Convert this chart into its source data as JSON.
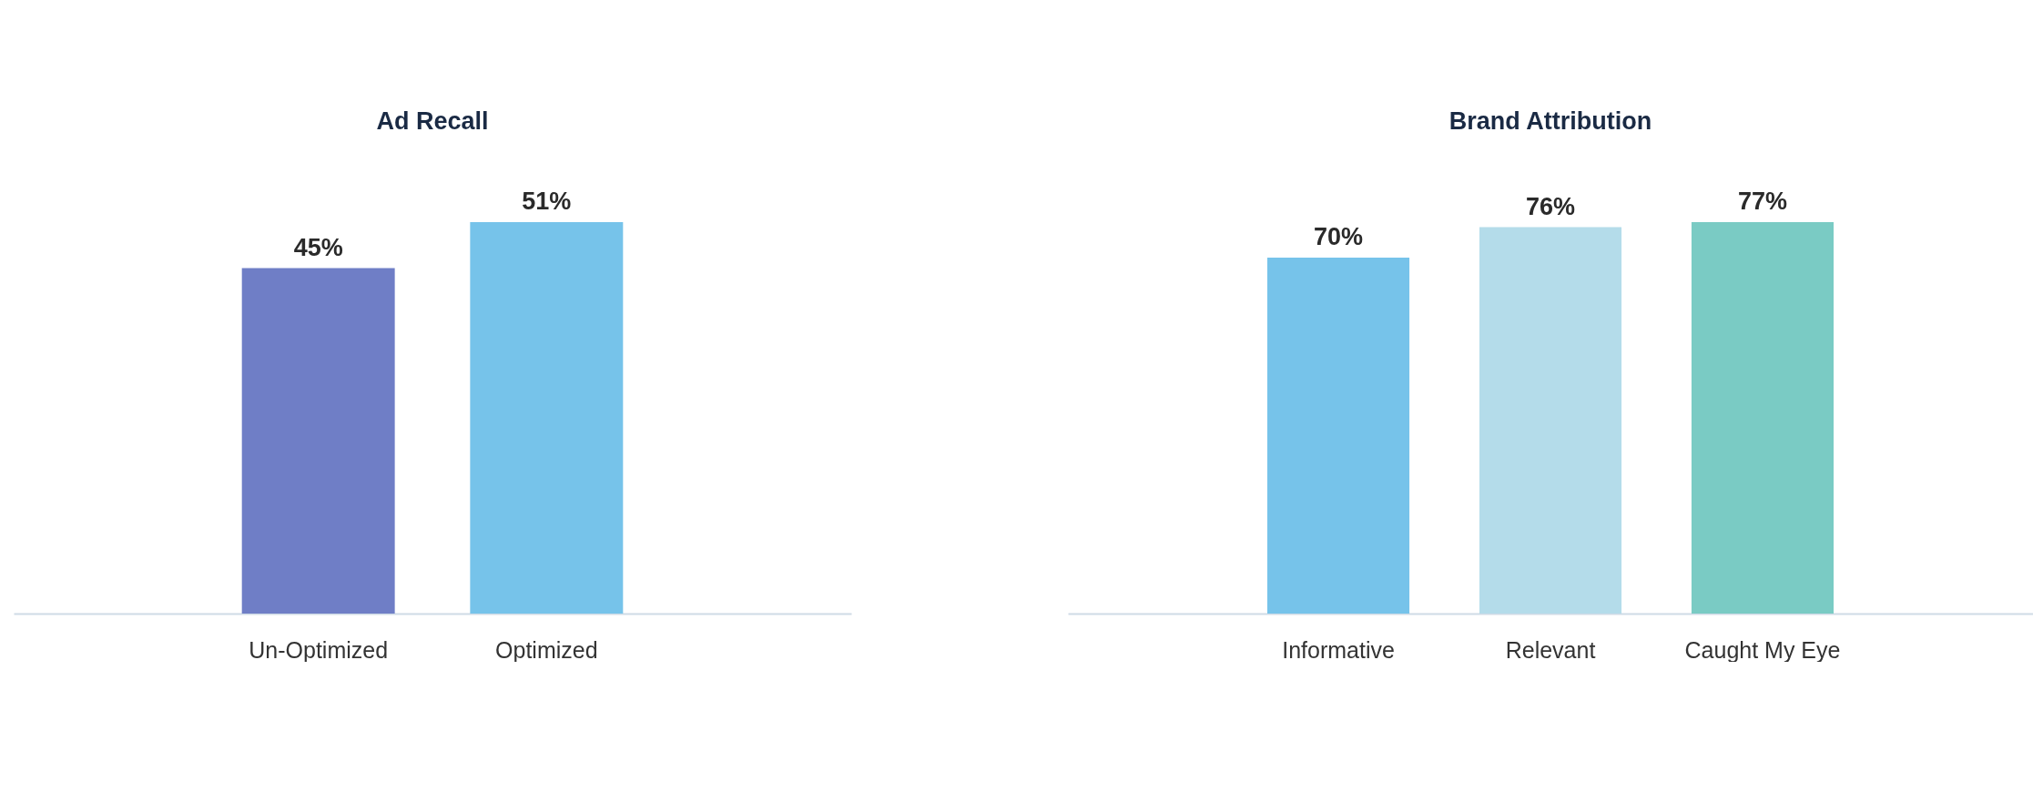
{
  "chart_data": [
    {
      "type": "bar",
      "title": "Ad Recall",
      "categories": [
        "Un-Optimized",
        "Optimized"
      ],
      "values": [
        45,
        51
      ],
      "colors": [
        "#6f7ec6",
        "#76c3ea"
      ],
      "value_labels": [
        "45%",
        "51%"
      ]
    },
    {
      "type": "bar",
      "title": "Brand Attribution",
      "categories": [
        "Informative",
        "Relevant",
        "Caught My Eye"
      ],
      "values": [
        70,
        76,
        77
      ],
      "colors": [
        "#76c3ea",
        "#b4dcea",
        "#7acbc4"
      ],
      "value_labels": [
        "70%",
        "76%",
        "77%"
      ]
    }
  ]
}
